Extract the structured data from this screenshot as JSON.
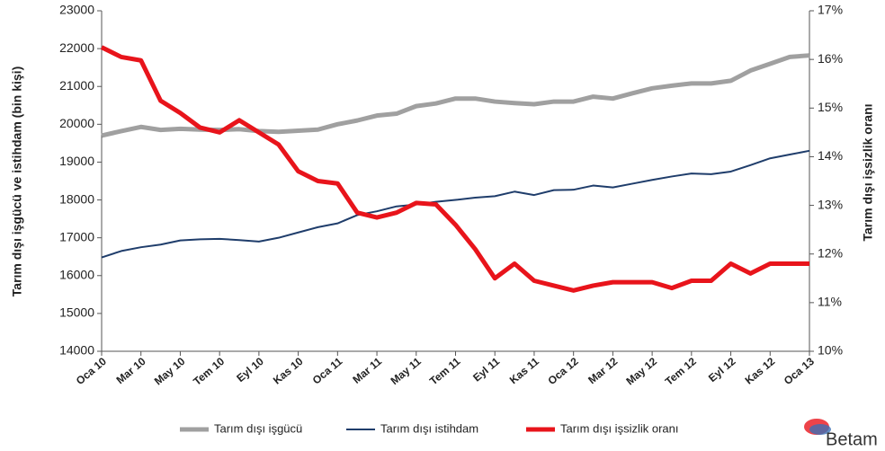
{
  "chart_data": {
    "type": "line",
    "categories": [
      "Oca 10",
      null,
      "Mar 10",
      null,
      "May 10",
      null,
      "Tem 10",
      null,
      "Eyl 10",
      null,
      "Kas 10",
      null,
      "Oca 11",
      null,
      "Mar 11",
      null,
      "May 11",
      null,
      "Tem 11",
      null,
      "Eyl 11",
      null,
      "Kas 11",
      null,
      "Oca 12",
      null,
      "Mar 12",
      null,
      "May 12",
      null,
      "Tem 12",
      null,
      "Eyl 12",
      null,
      "Kas 12",
      null,
      "Oca 13"
    ],
    "series": [
      {
        "name": "Tarım dışı işgücü",
        "color": "#a0a0a0",
        "values": [
          19700,
          19820,
          19930,
          19850,
          19880,
          19860,
          19850,
          19870,
          19820,
          19800,
          19830,
          19860,
          20000,
          20100,
          20230,
          20280,
          20480,
          20550,
          20680,
          20680,
          20600,
          20560,
          20530,
          20600,
          20600,
          20730,
          20680,
          20820,
          20950,
          21020,
          21080,
          21080,
          21150,
          21420,
          21600,
          21780,
          21820
        ]
      },
      {
        "name": "Tarım dışı istihdam",
        "color": "#1f3d6b",
        "values": [
          16480,
          16650,
          16750,
          16820,
          16930,
          16960,
          16970,
          16940,
          16900,
          17000,
          17140,
          17280,
          17380,
          17600,
          17700,
          17830,
          17880,
          17950,
          18000,
          18060,
          18100,
          18220,
          18130,
          18260,
          18270,
          18380,
          18330,
          18430,
          18530,
          18620,
          18700,
          18680,
          18750,
          18920,
          19100,
          19200,
          19300
        ]
      },
      {
        "name": "Tarım dışı işsizlik oranı",
        "color": "#e8141b",
        "axis": "y2",
        "values": [
          16.25,
          16.05,
          15.98,
          15.15,
          14.9,
          14.6,
          14.5,
          14.75,
          14.5,
          14.25,
          13.7,
          13.5,
          13.45,
          12.85,
          12.75,
          12.85,
          13.05,
          13.02,
          12.6,
          12.1,
          11.5,
          11.8,
          11.45,
          11.35,
          11.25,
          11.35,
          11.42,
          11.42,
          11.42,
          11.3,
          11.45,
          11.45,
          11.8,
          11.6,
          11.8,
          11.8,
          11.8
        ]
      }
    ],
    "ylabel": "Tarım dışı işgücü ve istihdam (bin kişi)",
    "y2label": "Tarım dışı işsizlik oranı",
    "ylim": [
      14000,
      23000
    ],
    "yticks": [
      14000,
      15000,
      16000,
      17000,
      18000,
      19000,
      20000,
      21000,
      22000,
      23000
    ],
    "y2lim": [
      10,
      17
    ],
    "y2ticks": [
      {
        "value": 10,
        "label": "10%"
      },
      {
        "value": 11,
        "label": "11%"
      },
      {
        "value": 12,
        "label": "12%"
      },
      {
        "value": 13,
        "label": "13%"
      },
      {
        "value": 14,
        "label": "14%"
      },
      {
        "value": 15,
        "label": "15%"
      },
      {
        "value": 16,
        "label": "16%"
      },
      {
        "value": 17,
        "label": "17%"
      }
    ],
    "legend": "bottom",
    "grid": false,
    "logo": "Betam"
  }
}
